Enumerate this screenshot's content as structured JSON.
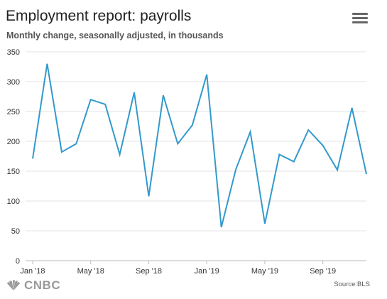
{
  "header": {
    "title": "Employment report: payrolls",
    "subtitle": "Monthly change, seasonally adjusted, in thousands"
  },
  "menu": {
    "icon": "hamburger-menu-icon"
  },
  "footer": {
    "logo_text": "CNBC",
    "source": "Source:BLS"
  },
  "colors": {
    "line": "#3399cc",
    "grid": "#e3e3e3",
    "axis": "#bbbbbb"
  },
  "chart_data": {
    "type": "line",
    "title": "Employment report: payrolls",
    "subtitle": "Monthly change, seasonally adjusted, in thousands",
    "x": [
      "Jan 2018",
      "Feb 2018",
      "Mar 2018",
      "Apr 2018",
      "May 2018",
      "Jun 2018",
      "Jul 2018",
      "Aug 2018",
      "Sep 2018",
      "Oct 2018",
      "Nov 2018",
      "Dec 2018",
      "Jan 2019",
      "Feb 2019",
      "Mar 2019",
      "Apr 2019",
      "May 2019",
      "Jun 2019",
      "Jul 2019",
      "Aug 2019",
      "Sep 2019",
      "Oct 2019",
      "Nov 2019",
      "Dec 2019"
    ],
    "x_tick_labels": [
      "Jan '18",
      "May '18",
      "Sep '18",
      "Jan '19",
      "May '19",
      "Sep '19"
    ],
    "x_tick_index": [
      0,
      4,
      8,
      12,
      16,
      20
    ],
    "series": [
      {
        "values": [
          171,
          330,
          182,
          196,
          270,
          262,
          178,
          282,
          108,
          277,
          196,
          227,
          312,
          56,
          153,
          216,
          62,
          178,
          166,
          219,
          193,
          152,
          256,
          145
        ]
      }
    ],
    "ylim": [
      0,
      350
    ],
    "y_ticks": [
      0,
      50,
      100,
      150,
      200,
      250,
      300,
      350
    ],
    "grid": true,
    "xlabel": "",
    "ylabel": ""
  }
}
